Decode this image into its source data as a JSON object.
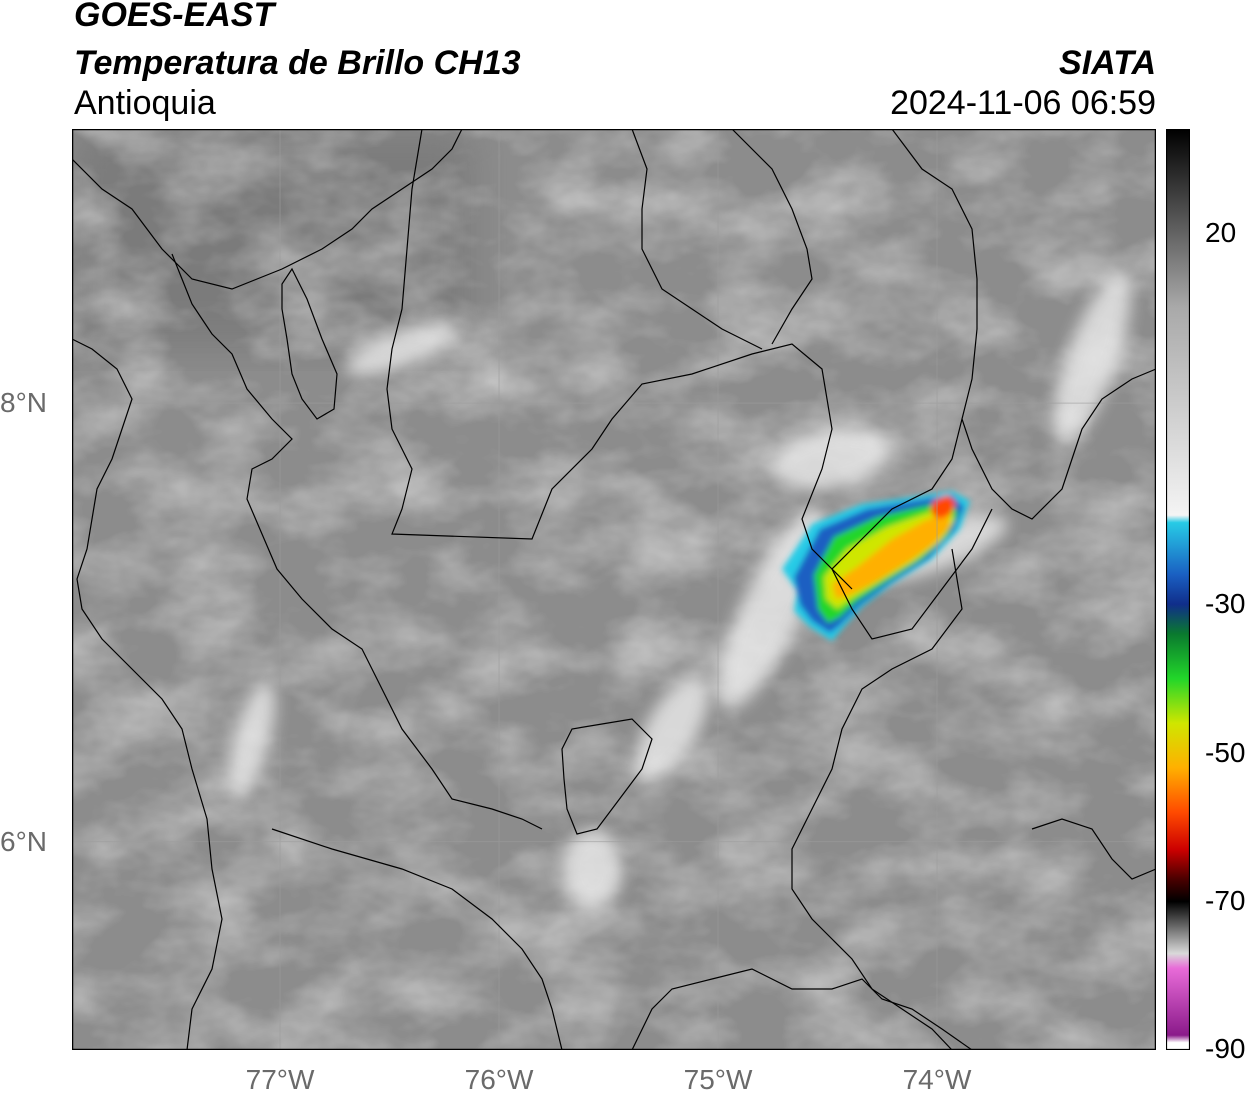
{
  "header": {
    "satellite": "GOES-EAST",
    "product": "Temperatura de Brillo CH13",
    "region": "Antioquia",
    "organization": "SIATA",
    "timestamp": "2024-11-06 06:59"
  },
  "map": {
    "lon_range": [
      -77.95,
      -73.0
    ],
    "lat_range": [
      5.05,
      9.25
    ],
    "lon_ticks": [
      {
        "value": -77,
        "label": "77°W"
      },
      {
        "value": -76,
        "label": "76°W"
      },
      {
        "value": -75,
        "label": "75°W"
      },
      {
        "value": -74,
        "label": "74°W"
      }
    ],
    "lat_ticks": [
      {
        "value": 8,
        "label": "8°N"
      },
      {
        "value": 6,
        "label": "6°N"
      }
    ],
    "gridlines": true,
    "background_color": "#8c8c8c",
    "border_color": "#000000"
  },
  "colorbar": {
    "range": [
      -90,
      34
    ],
    "tick_labels": [
      {
        "value": 20,
        "label": "20"
      },
      {
        "value": -30,
        "label": "-30"
      },
      {
        "value": -50,
        "label": "-50"
      },
      {
        "value": -70,
        "label": "-70"
      },
      {
        "value": -90,
        "label": "-90"
      }
    ],
    "stops": [
      {
        "value": 34,
        "color": "#000000"
      },
      {
        "value": 10,
        "color": "#a9a9a9"
      },
      {
        "value": -18,
        "color": "#f4f4f4"
      },
      {
        "value": -19,
        "color": "#27cbe6"
      },
      {
        "value": -26,
        "color": "#1a5fc2"
      },
      {
        "value": -30,
        "color": "#102e8a"
      },
      {
        "value": -34,
        "color": "#0a7a2e"
      },
      {
        "value": -40,
        "color": "#22d62a"
      },
      {
        "value": -46,
        "color": "#cfe600"
      },
      {
        "value": -52,
        "color": "#ffb000"
      },
      {
        "value": -58,
        "color": "#ff4a00"
      },
      {
        "value": -63,
        "color": "#cc0000"
      },
      {
        "value": -67,
        "color": "#4a0000"
      },
      {
        "value": -70,
        "color": "#000000"
      },
      {
        "value": -77,
        "color": "#d9d9d9"
      },
      {
        "value": -79,
        "color": "#e86bd8"
      },
      {
        "value": -88,
        "color": "#8a1a8a"
      },
      {
        "value": -89,
        "color": "#ffffff"
      }
    ]
  },
  "storm_colors": {
    "edge": "#27cbe6",
    "blue": "#1a5fc2",
    "green": "#22d62a",
    "yellow": "#cfe600",
    "orange": "#ffb000",
    "red": "#ff4a00"
  }
}
